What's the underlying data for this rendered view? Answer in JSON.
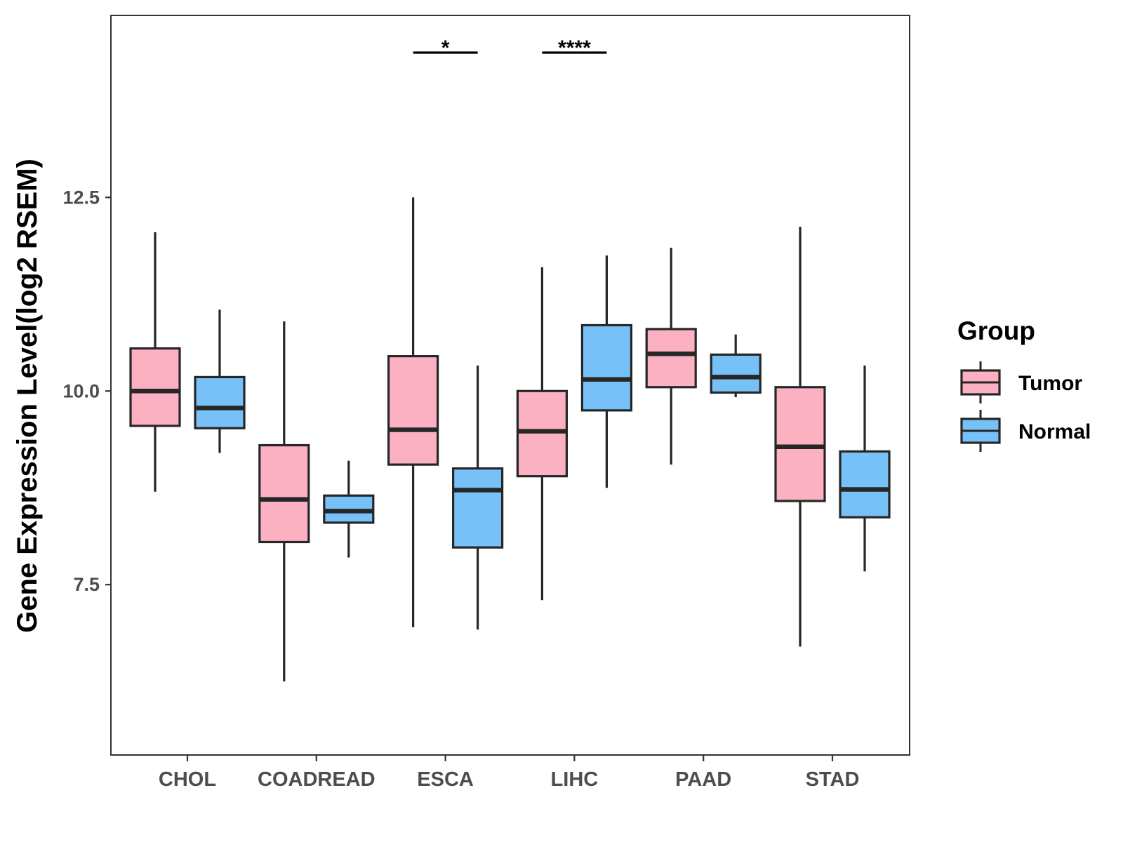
{
  "chart_data": {
    "type": "boxplot",
    "ylabel": "Gene Expression Level(log2 RSEM)",
    "xlabel": "",
    "ylim": [
      5.3,
      14.85
    ],
    "yticks": [
      7.5,
      10.0,
      12.5
    ],
    "ytick_labels": [
      "7.5",
      "10.0",
      "12.5"
    ],
    "categories": [
      "CHOL",
      "COADREAD",
      "ESCA",
      "LIHC",
      "PAAD",
      "STAD"
    ],
    "legend": {
      "title": "Group",
      "position": "right",
      "entries": [
        {
          "label": "Tumor",
          "color": "#FCB1C3"
        },
        {
          "label": "Normal",
          "color": "#78C1F8"
        }
      ]
    },
    "series": [
      {
        "name": "Tumor",
        "color": "#FCB1C3",
        "boxes": [
          {
            "category": "CHOL",
            "whisker_low": 8.7,
            "q1": 9.55,
            "median": 10.0,
            "q3": 10.55,
            "whisker_high": 12.05
          },
          {
            "category": "COADREAD",
            "whisker_low": 6.25,
            "q1": 8.05,
            "median": 8.6,
            "q3": 9.3,
            "whisker_high": 10.9
          },
          {
            "category": "ESCA",
            "whisker_low": 6.95,
            "q1": 9.05,
            "median": 9.5,
            "q3": 10.45,
            "whisker_high": 12.5
          },
          {
            "category": "LIHC",
            "whisker_low": 7.3,
            "q1": 8.9,
            "median": 9.48,
            "q3": 10.0,
            "whisker_high": 11.6
          },
          {
            "category": "PAAD",
            "whisker_low": 9.05,
            "q1": 10.05,
            "median": 10.48,
            "q3": 10.8,
            "whisker_high": 11.85
          },
          {
            "category": "STAD",
            "whisker_low": 6.7,
            "q1": 8.58,
            "median": 9.28,
            "q3": 10.05,
            "whisker_high": 12.12
          }
        ]
      },
      {
        "name": "Normal",
        "color": "#78C1F8",
        "boxes": [
          {
            "category": "CHOL",
            "whisker_low": 9.2,
            "q1": 9.52,
            "median": 9.78,
            "q3": 10.18,
            "whisker_high": 11.05
          },
          {
            "category": "COADREAD",
            "whisker_low": 7.85,
            "q1": 8.3,
            "median": 8.45,
            "q3": 8.65,
            "whisker_high": 9.1
          },
          {
            "category": "ESCA",
            "whisker_low": 6.92,
            "q1": 7.98,
            "median": 8.72,
            "q3": 9.0,
            "whisker_high": 10.33
          },
          {
            "category": "LIHC",
            "whisker_low": 8.75,
            "q1": 9.75,
            "median": 10.15,
            "q3": 10.85,
            "whisker_high": 11.75
          },
          {
            "category": "PAAD",
            "whisker_low": 9.92,
            "q1": 9.98,
            "median": 10.18,
            "q3": 10.47,
            "whisker_high": 10.73
          },
          {
            "category": "STAD",
            "whisker_low": 7.67,
            "q1": 8.37,
            "median": 8.73,
            "q3": 9.22,
            "whisker_high": 10.33
          }
        ]
      }
    ],
    "annotations": [
      {
        "category": "ESCA",
        "label": "*"
      },
      {
        "category": "LIHC",
        "label": "****"
      }
    ]
  }
}
